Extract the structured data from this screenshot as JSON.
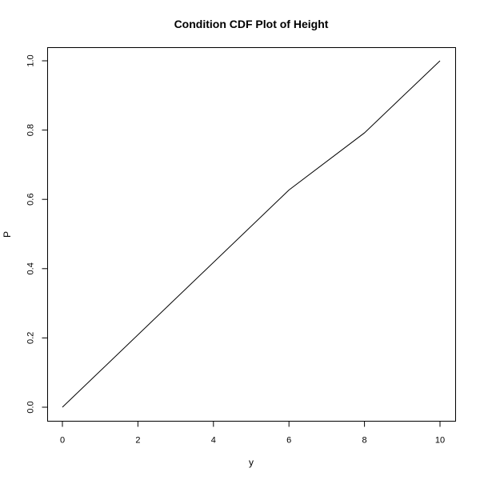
{
  "chart_data": {
    "type": "line",
    "title": "Condition CDF Plot of Height",
    "xlabel": "y",
    "ylabel": "P",
    "xlim": [
      0,
      10
    ],
    "ylim": [
      0,
      1
    ],
    "x_ticks": [
      0,
      2,
      4,
      6,
      8,
      10
    ],
    "y_ticks": [
      0.0,
      0.2,
      0.4,
      0.6,
      0.8,
      1.0
    ],
    "x_tick_labels": [
      "0",
      "2",
      "4",
      "6",
      "8",
      "10"
    ],
    "y_tick_labels": [
      "0.0",
      "0.2",
      "0.4",
      "0.6",
      "0.8",
      "1.0"
    ],
    "grid": false,
    "series": [
      {
        "x": [
          0,
          6,
          8,
          10
        ],
        "values": [
          0.0,
          0.627,
          0.792,
          1.0
        ],
        "color": "#000000"
      }
    ]
  }
}
